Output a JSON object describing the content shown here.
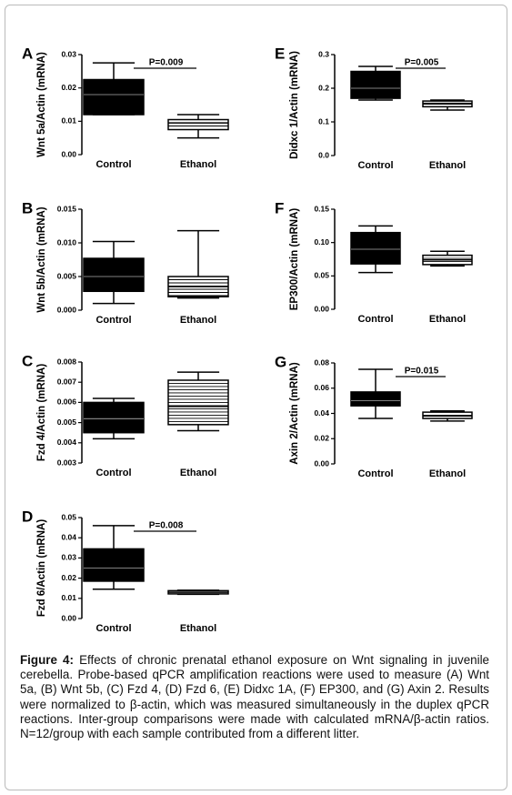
{
  "chart_data": [
    {
      "type": "box",
      "panel": "A",
      "ylabel": "Wnt 5a/Actin (mRNA)",
      "categories": [
        "Control",
        "Ethanol"
      ],
      "fills": [
        "solid",
        "striped"
      ],
      "color": "#000000",
      "values": [
        {
          "whislo": 0.012,
          "q1": 0.012,
          "med": 0.018,
          "q3": 0.0225,
          "whishi": 0.0275
        },
        {
          "whislo": 0.005,
          "q1": 0.0075,
          "med": 0.0095,
          "q3": 0.0105,
          "whishi": 0.012
        }
      ],
      "ylim": [
        0,
        0.03
      ],
      "yticks": [
        {
          "value": 0,
          "label": "0.00"
        },
        0.01,
        0.02,
        0.03
      ],
      "annotation": "P=0.009"
    },
    {
      "type": "box",
      "panel": "B",
      "ylabel": "Wnt 5b/Actin (mRNA)",
      "categories": [
        "Control",
        "Ethanol"
      ],
      "fills": [
        "solid",
        "striped"
      ],
      "color": "#000000",
      "values": [
        {
          "whislo": 0.001,
          "q1": 0.0028,
          "med": 0.005,
          "q3": 0.0077,
          "whishi": 0.0102
        },
        {
          "whislo": 0.0018,
          "q1": 0.002,
          "med": 0.0035,
          "q3": 0.005,
          "whishi": 0.0118
        }
      ],
      "ylim": [
        0,
        0.015
      ],
      "yticks": [
        {
          "value": 0,
          "label": "0.000"
        },
        0.005,
        {
          "value": 0.01,
          "label": "0.010"
        },
        0.015
      ]
    },
    {
      "type": "box",
      "panel": "C",
      "ylabel": "Fzd 4/Actin (mRNA)",
      "categories": [
        "Control",
        "Ethanol"
      ],
      "fills": [
        "solid",
        "striped"
      ],
      "color": "#000000",
      "values": [
        {
          "whislo": 0.0042,
          "q1": 0.0045,
          "med": 0.0052,
          "q3": 0.006,
          "whishi": 0.0062
        },
        {
          "whislo": 0.0046,
          "q1": 0.0049,
          "med": 0.0058,
          "q3": 0.0071,
          "whishi": 0.0075
        }
      ],
      "ylim": [
        0.003,
        0.008
      ],
      "yticks": [
        0.003,
        0.004,
        0.005,
        0.006,
        0.007,
        0.008
      ]
    },
    {
      "type": "box",
      "panel": "D",
      "ylabel": "Fzd 6/Actin (mRNA)",
      "categories": [
        "Control",
        "Ethanol"
      ],
      "fills": [
        "solid",
        "striped"
      ],
      "color": "#000000",
      "values": [
        {
          "whislo": 0.0145,
          "q1": 0.0185,
          "med": 0.025,
          "q3": 0.0345,
          "whishi": 0.046
        },
        {
          "whislo": 0.012,
          "q1": 0.0122,
          "med": 0.013,
          "q3": 0.0138,
          "whishi": 0.014
        }
      ],
      "ylim": [
        0,
        0.05
      ],
      "yticks": [
        {
          "value": 0,
          "label": "0.00"
        },
        0.01,
        0.02,
        0.03,
        0.04,
        0.05
      ],
      "annotation": "P=0.008"
    },
    {
      "type": "box",
      "panel": "E",
      "ylabel": "Didxc 1/Actin (mRNA)",
      "categories": [
        "Control",
        "Ethanol"
      ],
      "fills": [
        "solid",
        "striped"
      ],
      "color": "#000000",
      "values": [
        {
          "whislo": 0.165,
          "q1": 0.17,
          "med": 0.2,
          "q3": 0.25,
          "whishi": 0.265
        },
        {
          "whislo": 0.135,
          "q1": 0.145,
          "med": 0.155,
          "q3": 0.162,
          "whishi": 0.165
        }
      ],
      "ylim": [
        0,
        0.3
      ],
      "yticks": [
        {
          "value": 0,
          "label": "0.0"
        },
        0.1,
        0.2,
        0.3
      ],
      "annotation": "P=0.005"
    },
    {
      "type": "box",
      "panel": "F",
      "ylabel": "EP300/Actin (mRNA)",
      "categories": [
        "Control",
        "Ethanol"
      ],
      "fills": [
        "solid",
        "striped"
      ],
      "color": "#000000",
      "values": [
        {
          "whislo": 0.055,
          "q1": 0.068,
          "med": 0.09,
          "q3": 0.115,
          "whishi": 0.125
        },
        {
          "whislo": 0.065,
          "q1": 0.067,
          "med": 0.074,
          "q3": 0.081,
          "whishi": 0.087
        }
      ],
      "ylim": [
        0,
        0.15
      ],
      "yticks": [
        {
          "value": 0,
          "label": "0.00"
        },
        0.05,
        {
          "value": 0.1,
          "label": "0.10"
        },
        0.15
      ]
    },
    {
      "type": "box",
      "panel": "G",
      "ylabel": "Axin 2/Actin (mRNA)",
      "categories": [
        "Control",
        "Ethanol"
      ],
      "fills": [
        "solid",
        "striped"
      ],
      "color": "#000000",
      "values": [
        {
          "whislo": 0.036,
          "q1": 0.046,
          "med": 0.05,
          "q3": 0.057,
          "whishi": 0.075
        },
        {
          "whislo": 0.034,
          "q1": 0.036,
          "med": 0.038,
          "q3": 0.041,
          "whishi": 0.042
        }
      ],
      "ylim": [
        0,
        0.08
      ],
      "yticks": [
        {
          "value": 0,
          "label": "0.00"
        },
        0.02,
        0.04,
        0.06,
        {
          "value": 0.08,
          "label": "0.08"
        }
      ],
      "annotation": "P=0.015"
    }
  ],
  "caption": {
    "label": "Figure 4:",
    "text": "Effects of chronic prenatal ethanol exposure on Wnt signaling in juvenile cerebella. Probe-based qPCR amplification reactions were used to measure (A) Wnt 5a, (B) Wnt 5b, (C) Fzd 4, (D) Fzd 6, (E) Didxc 1A, (F) EP300, and (G) Axin 2. Results were normalized to β-actin, which was measured simultaneously in the duplex qPCR reactions. Inter-group comparisons were made with calculated mRNA/β-actin ratios. N=12/group with each sample contributed from a different litter."
  }
}
